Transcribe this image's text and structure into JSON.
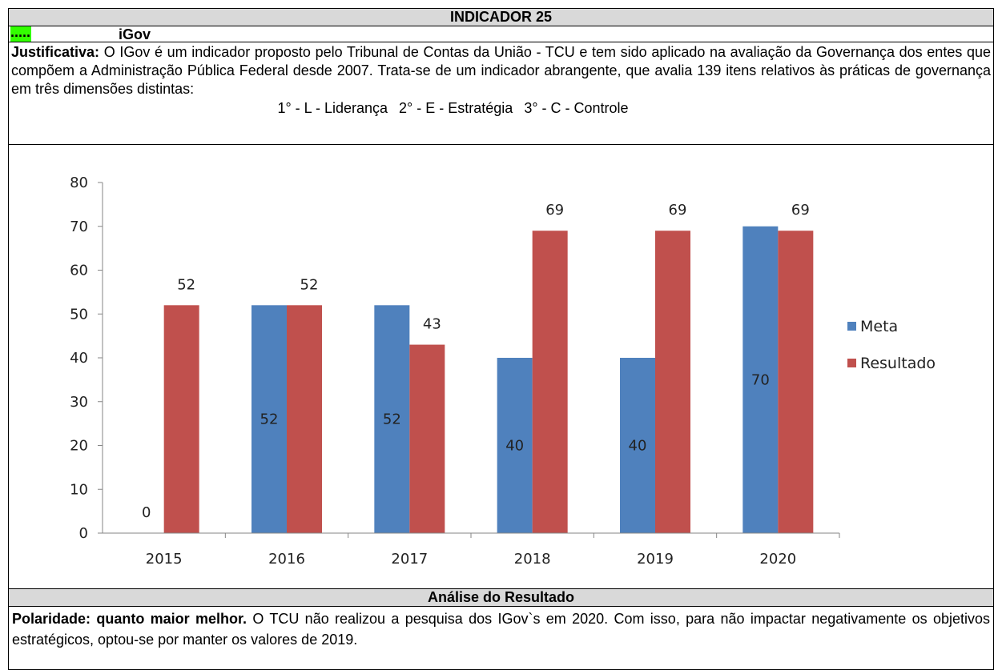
{
  "title": "INDICADOR 25",
  "code": ".....",
  "name": "iGov",
  "justification": {
    "label": "Justificativa:",
    "text": "O IGov é um indicador proposto pelo Tribunal de Contas da União - TCU e tem sido aplicado na avaliação da Governança dos entes que compõem a Administração Pública Federal desde 2007. Trata-se de um indicador abrangente, que avalia 139 itens relativos às práticas de governança em três dimensões distintas:"
  },
  "dimensions": [
    "1° - L - Liderança",
    "2° - E - Estratégia",
    "3° - C - Controle"
  ],
  "chart_data": {
    "type": "bar",
    "categories": [
      "2015",
      "2016",
      "2017",
      "2018",
      "2019",
      "2020"
    ],
    "series": [
      {
        "name": "Meta",
        "color": "#4f81bd",
        "values": [
          0,
          52,
          52,
          40,
          40,
          70
        ]
      },
      {
        "name": "Resultado",
        "color": "#c0504d",
        "values": [
          52,
          52,
          43,
          69,
          69,
          69
        ]
      }
    ],
    "ylim": [
      0,
      80
    ],
    "yticks": [
      0,
      10,
      20,
      30,
      40,
      50,
      60,
      70,
      80
    ],
    "grid": false,
    "legend": "right"
  },
  "analysis": {
    "title": "Análise do Resultado",
    "label": "Polaridade: quanto maior melhor.",
    "text": "O TCU não realizou a pesquisa dos IGov`s em 2020. Com isso, para não impactar negativamente os objetivos estratégicos, optou-se por manter os valores de 2019."
  }
}
